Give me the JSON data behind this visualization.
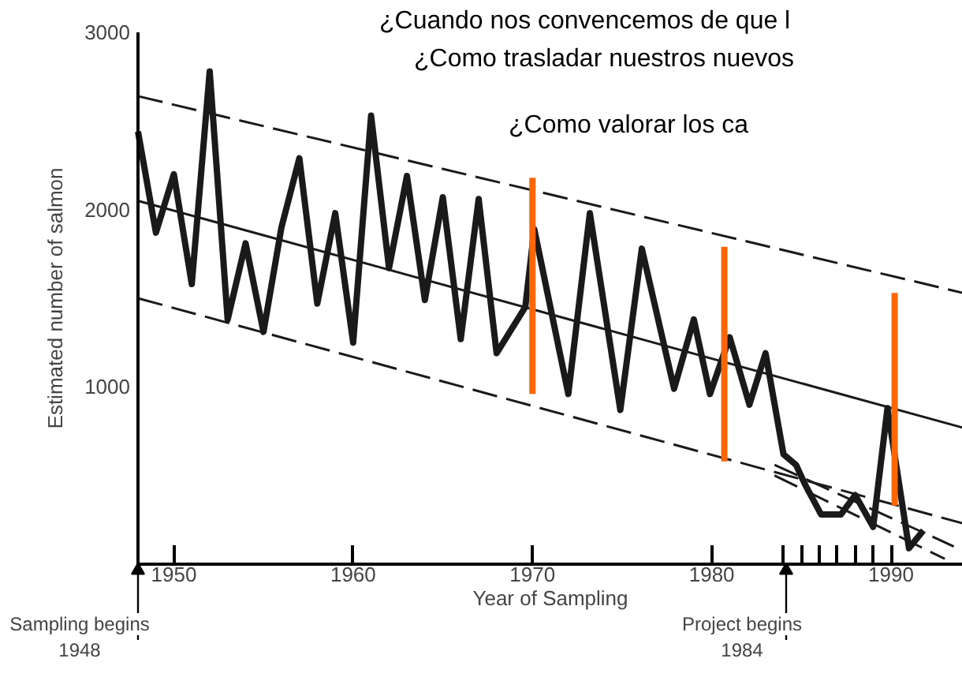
{
  "chart_data": {
    "type": "line",
    "xlabel": "Year of Sampling",
    "ylabel": "Estimated number of salmon",
    "xlim": [
      1948,
      1994
    ],
    "ylim": [
      0,
      3000
    ],
    "xticks": [
      1950,
      1960,
      1970,
      1980,
      1990,
      {
        "value": 1984,
        "label": null
      },
      {
        "value": 1985,
        "label": null
      },
      {
        "value": 1986,
        "label": null
      },
      {
        "value": 1987,
        "label": null
      },
      {
        "value": 1988,
        "label": null
      },
      {
        "value": 1989,
        "label": null
      }
    ],
    "yticks": [
      1000,
      2000,
      3000
    ],
    "grid": false,
    "marker": "none",
    "series": [
      {
        "color": "#1a1a1a",
        "line_style": "solid",
        "x": [
          1948,
          1949,
          1950,
          1951,
          1952,
          1953,
          1954,
          1955,
          1956,
          1957,
          1958,
          1959,
          1960,
          1961,
          1962,
          1963,
          1964,
          1965,
          1966,
          1967,
          1968,
          1969.6,
          1970.1,
          1972,
          1973.2,
          1974.9,
          1976.1,
          1977.9,
          1979,
          1979.9,
          1981,
          1982.1,
          1983,
          1984,
          1984.7,
          1985.2,
          1986.1,
          1987.2,
          1988,
          1989,
          1989.8,
          1991,
          1991.8
        ],
        "values": [
          2440,
          1870,
          2200,
          1580,
          2780,
          1380,
          1810,
          1310,
          1900,
          2290,
          1470,
          1980,
          1250,
          2530,
          1670,
          2190,
          1490,
          2070,
          1270,
          2060,
          1190,
          1450,
          1890,
          960,
          1980,
          870,
          1780,
          990,
          1380,
          960,
          1280,
          900,
          1190,
          620,
          560,
          450,
          280,
          280,
          390,
          210,
          880,
          90,
          190
        ]
      },
      {
        "color": "#1a1a1a",
        "line_style": "solid",
        "x": [
          1948,
          1994
        ],
        "values": [
          2050,
          770
        ]
      },
      {
        "color": "#1a1a1a",
        "line_style": "dashed",
        "x": [
          1948,
          1994
        ],
        "values": [
          2640,
          1530
        ]
      },
      {
        "color": "#1a1a1a",
        "line_style": "dashed",
        "x": [
          1948,
          1994
        ],
        "values": [
          1500,
          230
        ]
      },
      {
        "color": "#1a1a1a",
        "line_style": "dashed",
        "x": [
          1983.5,
          1993.5
        ],
        "values": [
          560,
          100
        ]
      },
      {
        "color": "#1a1a1a",
        "line_style": "dashed",
        "x": [
          1983.5,
          1993
        ],
        "values": [
          500,
          30
        ]
      },
      {
        "color": "#ff6600",
        "line_style": "solid",
        "x": [
          1970,
          1970
        ],
        "values": [
          2180,
          960
        ]
      },
      {
        "color": "#ff6600",
        "line_style": "solid",
        "x": [
          1980.7,
          1980.7
        ],
        "values": [
          1790,
          580
        ]
      },
      {
        "color": "#ff6600",
        "line_style": "solid",
        "x": [
          1990.2,
          1990.2
        ],
        "values": [
          1530,
          330
        ]
      }
    ],
    "annotations": [
      "¿Cuando nos convencemos de que l",
      "¿Como trasladar nuestros nuevos",
      "¿Como valorar los ca",
      "Sampling begins\n1948",
      "Project begins\n1984"
    ]
  }
}
